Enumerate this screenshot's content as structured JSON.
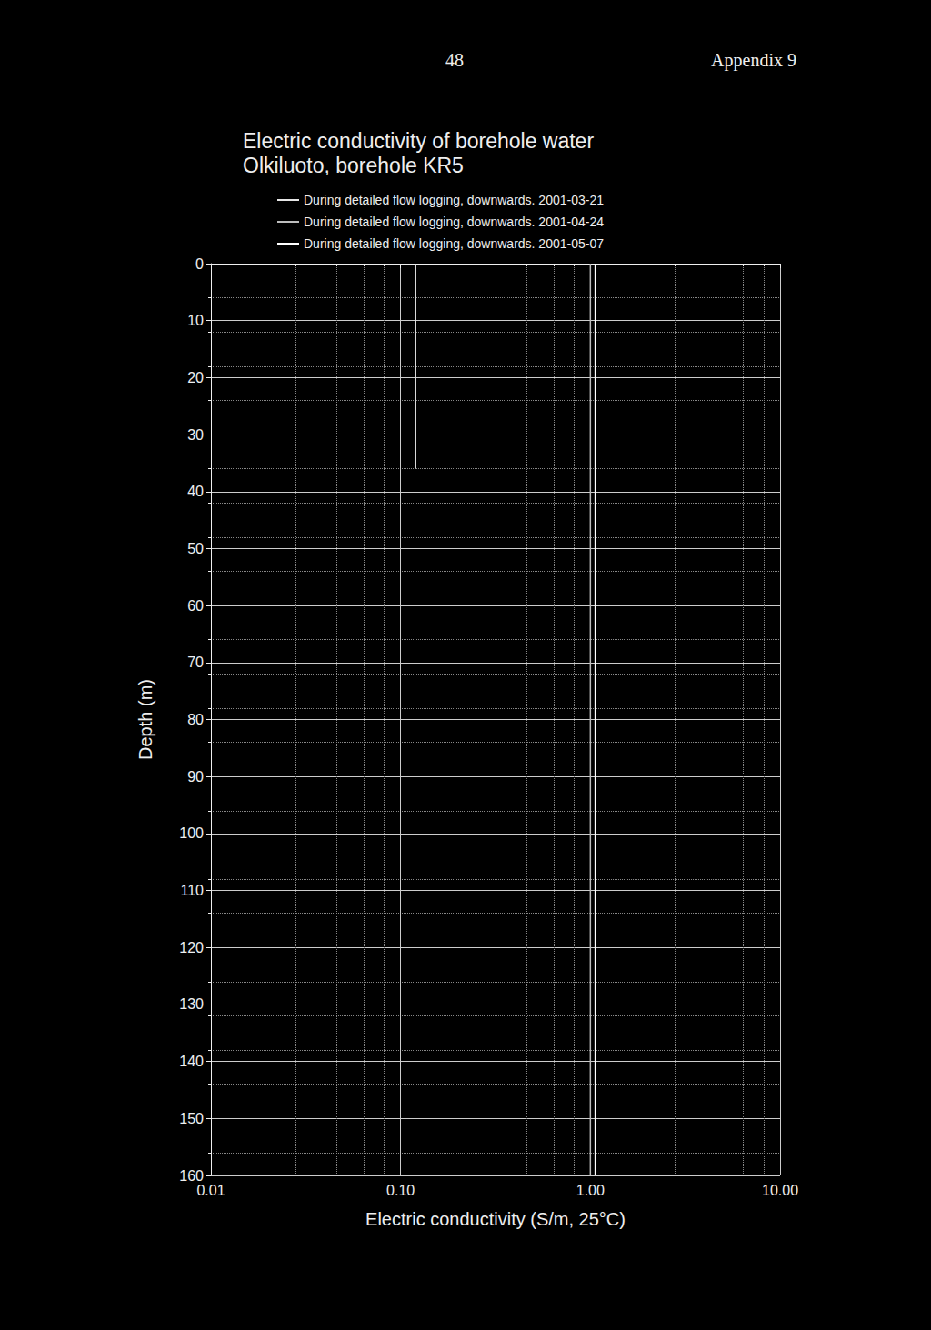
{
  "page_header": {
    "page": "48",
    "appendix": "Appendix 9"
  },
  "chart_data": {
    "type": "line",
    "title": "Electric conductivity of borehole water",
    "subtitle": "Olkiluoto, borehole KR5",
    "x_label": "Electric conductivity (S/m, 25°C)",
    "y_label": "Depth (m)",
    "log": "x",
    "grid": true,
    "legend": "top",
    "xlim": [
      0.01,
      10
    ],
    "xticks": [
      {
        "value": 0.01,
        "label": "0.01"
      },
      {
        "value": 0.1,
        "label": "0.10"
      },
      {
        "value": 1,
        "label": "1.00"
      },
      {
        "value": 10,
        "label": "10.00"
      }
    ],
    "ylim": [
      0,
      160
    ],
    "yticks": [
      0,
      10,
      20,
      30,
      40,
      50,
      60,
      70,
      80,
      90,
      100,
      110,
      120,
      130,
      140,
      150,
      160
    ],
    "series": [
      {
        "name": "During detailed flow logging, downwards. 2001-03-21",
        "color": "#e6e6e6",
        "x": [
          0.12,
          0.12
        ],
        "y": [
          0,
          36
        ]
      },
      {
        "name": "During detailed flow logging, downwards. 2001-04-24",
        "color": "#bdbdbd",
        "x": [
          1.0,
          1.0
        ],
        "y": [
          0,
          160
        ]
      },
      {
        "name": "During detailed flow logging, downwards. 2001-05-07",
        "color": "#ffffff",
        "x": [
          1.06,
          1.06
        ],
        "y": [
          0,
          160
        ]
      }
    ]
  }
}
